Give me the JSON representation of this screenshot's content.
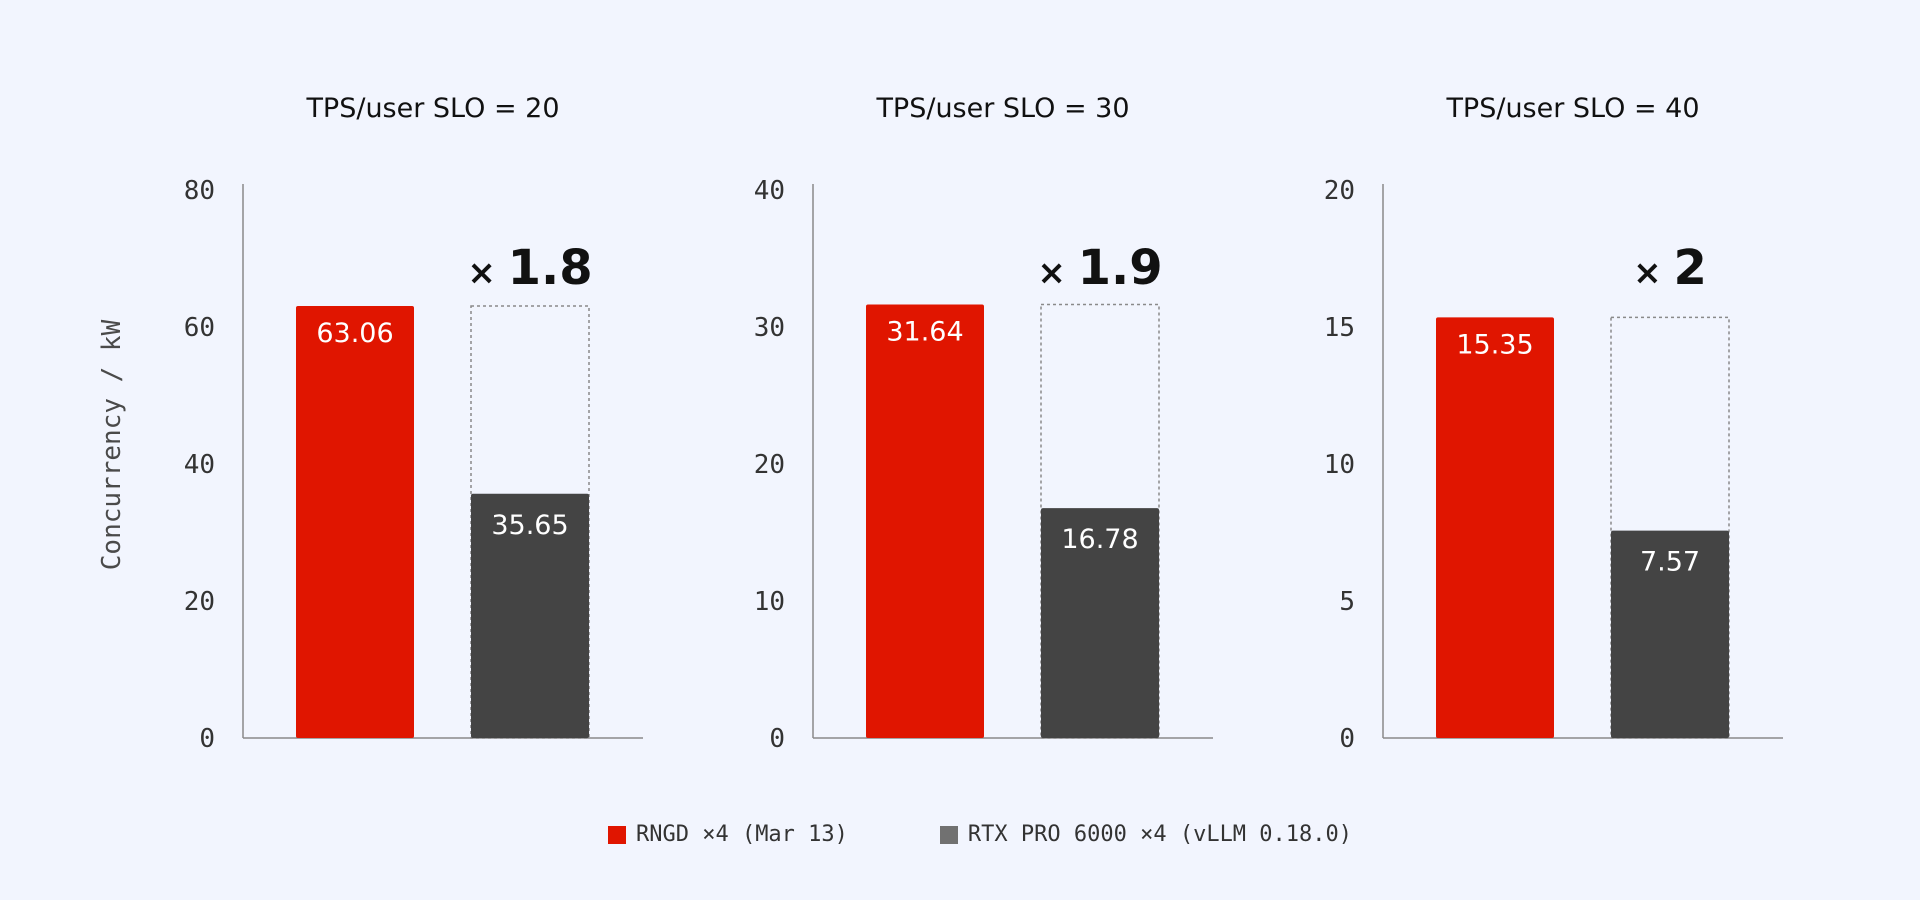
{
  "colors": {
    "rngd": "#e01500",
    "rtx": "#444444",
    "rtx_legend": "#717171"
  },
  "chart_data": [
    {
      "type": "bar",
      "title": "TPS/user SLO = 20",
      "ylabel": "Concurrency / kW",
      "ylim": [
        0,
        80
      ],
      "yticks": [
        0,
        20,
        40,
        60,
        80
      ],
      "series": [
        {
          "name": "RNGD ×4 (Mar 13)",
          "value": 63.06,
          "label": "63.06"
        },
        {
          "name": "RTX PRO 6000 ×4 (vLLM 0.18.0)",
          "value": 35.65,
          "label": "35.65"
        }
      ],
      "ratio": {
        "symbol": "×",
        "value": "1.8"
      }
    },
    {
      "type": "bar",
      "title": "TPS/user SLO = 30",
      "ylim": [
        0,
        40
      ],
      "yticks": [
        0,
        10,
        20,
        30,
        40
      ],
      "series": [
        {
          "name": "RNGD ×4 (Mar 13)",
          "value": 31.64,
          "label": "31.64"
        },
        {
          "name": "RTX PRO 6000 ×4 (vLLM 0.18.0)",
          "value": 16.78,
          "label": "16.78"
        }
      ],
      "ratio": {
        "symbol": "×",
        "value": "1.9"
      }
    },
    {
      "type": "bar",
      "title": "TPS/user SLO = 40",
      "ylim": [
        0,
        20
      ],
      "yticks": [
        0,
        5,
        10,
        15,
        20
      ],
      "series": [
        {
          "name": "RNGD ×4 (Mar 13)",
          "value": 15.35,
          "label": "15.35"
        },
        {
          "name": "RTX PRO 6000 ×4 (vLLM 0.18.0)",
          "value": 7.57,
          "label": "7.57"
        }
      ],
      "ratio": {
        "symbol": "×",
        "value": "2"
      }
    }
  ],
  "legend": [
    {
      "label": "RNGD ×4 (Mar 13)",
      "color_key": "rngd"
    },
    {
      "label": "RTX PRO 6000 ×4 (vLLM 0.18.0)",
      "color_key": "rtx_legend"
    }
  ]
}
